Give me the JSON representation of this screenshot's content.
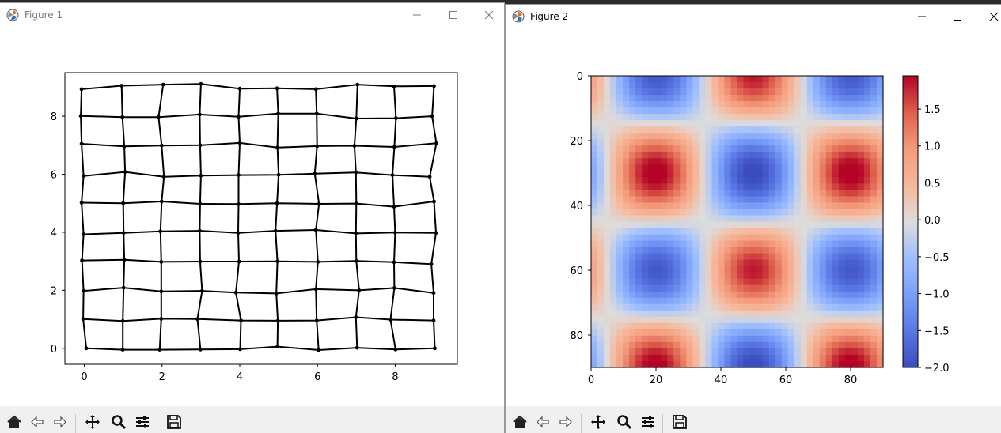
{
  "windows": [
    {
      "title": "Figure 1"
    },
    {
      "title": "Figure 2"
    }
  ],
  "colors": {
    "mesh": "#000000",
    "toolbar_bg": "#f0f0f0"
  },
  "toolbar_icons": [
    "home-icon",
    "back-arrow-icon",
    "forward-arrow-icon",
    "pan-move-icon",
    "zoom-magnifier-icon",
    "configure-subplots-icon",
    "save-floppy-icon"
  ],
  "chart_data": [
    {
      "type": "scatter",
      "description_kind": "jittered grid mesh",
      "xlim": [
        -0.5,
        9.6
      ],
      "ylim": [
        -0.55,
        9.5
      ],
      "x_ticks": [
        "0",
        "2",
        "4",
        "6",
        "8"
      ],
      "y_ticks": [
        "0",
        "2",
        "4",
        "6",
        "8"
      ],
      "grid_x": [
        [
          0.05,
          0.99,
          1.94,
          2.99,
          4.01,
          4.97,
          6.03,
          7.02,
          8.01,
          9.02
        ],
        [
          -0.03,
          0.99,
          1.98,
          2.91,
          4.03,
          4.98,
          5.98,
          6.99,
          7.88,
          8.99
        ],
        [
          -0.02,
          1.01,
          1.98,
          3.03,
          3.9,
          4.94,
          5.96,
          7.07,
          7.98,
          8.99
        ],
        [
          -0.06,
          1.03,
          1.98,
          2.98,
          3.98,
          4.97,
          6.01,
          7.0,
          7.97,
          8.93
        ],
        [
          -0.02,
          1.01,
          1.96,
          2.97,
          3.96,
          4.92,
          5.96,
          6.99,
          8.0,
          9.05
        ],
        [
          -0.07,
          1.0,
          1.99,
          2.98,
          3.97,
          4.96,
          6.04,
          7.0,
          7.97,
          9.0
        ],
        [
          -0.02,
          1.05,
          2.05,
          3.0,
          3.97,
          5.0,
          5.93,
          6.99,
          7.93,
          8.89
        ],
        [
          -0.07,
          1.03,
          1.99,
          2.98,
          4.0,
          4.97,
          5.99,
          6.95,
          7.98,
          9.06
        ],
        [
          -0.09,
          0.98,
          1.91,
          2.97,
          3.97,
          4.99,
          5.98,
          7.0,
          8.02,
          8.95
        ],
        [
          -0.07,
          0.96,
          2.03,
          3.0,
          4.0,
          4.96,
          5.96,
          7.03,
          7.97,
          9.0
        ]
      ],
      "grid_y": [
        [
          0.0,
          -0.05,
          -0.05,
          -0.04,
          -0.03,
          0.06,
          -0.06,
          0.02,
          -0.04,
          0.0
        ],
        [
          1.01,
          0.94,
          1.02,
          1.01,
          0.96,
          0.95,
          0.96,
          1.07,
          0.99,
          0.96
        ],
        [
          1.98,
          2.09,
          1.96,
          1.98,
          1.92,
          1.89,
          2.04,
          2.0,
          2.08,
          1.91
        ],
        [
          3.03,
          3.05,
          2.98,
          2.99,
          2.99,
          3.0,
          2.98,
          3.01,
          2.97,
          2.9
        ],
        [
          3.93,
          3.98,
          4.03,
          4.05,
          3.98,
          4.05,
          4.08,
          3.96,
          3.99,
          3.98
        ],
        [
          5.02,
          5.0,
          5.06,
          4.98,
          4.97,
          5.0,
          4.98,
          4.99,
          4.88,
          5.06
        ],
        [
          5.94,
          6.08,
          5.91,
          5.95,
          5.97,
          5.98,
          6.02,
          6.06,
          5.97,
          5.91
        ],
        [
          7.05,
          6.96,
          6.99,
          7.0,
          7.08,
          6.92,
          6.97,
          6.98,
          6.94,
          7.07
        ],
        [
          8.01,
          7.97,
          7.97,
          8.06,
          7.98,
          8.09,
          8.09,
          7.92,
          7.93,
          8.0
        ],
        [
          8.93,
          9.05,
          9.09,
          9.11,
          8.95,
          8.96,
          8.93,
          9.09,
          9.03,
          9.04
        ]
      ]
    },
    {
      "type": "heatmap",
      "function": "sin-cos pattern",
      "xlim": [
        0,
        90
      ],
      "ylim": [
        90,
        0
      ],
      "x_ticks": [
        "0",
        "20",
        "40",
        "60",
        "80"
      ],
      "y_ticks": [
        "0",
        "20",
        "40",
        "60",
        "80"
      ],
      "colormap": "coolwarm",
      "colorbar": {
        "min": -2.0,
        "max": 1.95,
        "ticks": [
          "1.5",
          "1.0",
          "0.5",
          "0.0",
          "−0.5",
          "−1.0",
          "−1.5",
          "−2.0"
        ]
      }
    }
  ]
}
